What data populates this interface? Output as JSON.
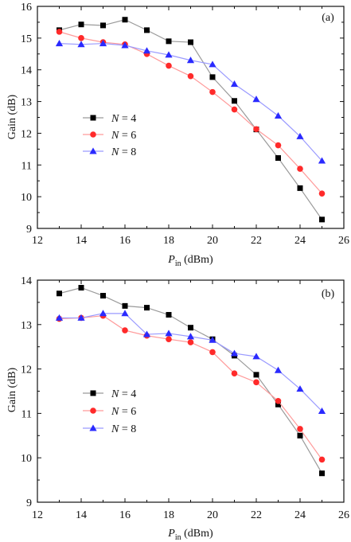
{
  "chart_data": [
    {
      "type": "line",
      "panel_label": "(a)",
      "xlabel_main": "P",
      "xlabel_sub": "in",
      "xlabel_unit": " (dBm)",
      "ylabel": "Gain (dB)",
      "xlim": [
        12,
        26
      ],
      "ylim": [
        9,
        16
      ],
      "xticks": [
        "12",
        "14",
        "16",
        "18",
        "20",
        "22",
        "24",
        "26"
      ],
      "yticks": [
        "9",
        "10",
        "11",
        "12",
        "13",
        "14",
        "15",
        "16"
      ],
      "legend_position": "middle-left",
      "x": [
        13,
        14,
        15,
        16,
        17,
        18,
        19,
        20,
        21,
        22,
        23,
        24,
        25
      ],
      "series": [
        {
          "label_italic": "N",
          "label_rest": " = 4",
          "marker": "square",
          "color": "#000000",
          "line_color": "#9a9a9a",
          "values": [
            15.25,
            15.43,
            15.4,
            15.58,
            15.25,
            14.9,
            14.87,
            13.77,
            13.02,
            12.12,
            11.22,
            10.27,
            9.28
          ]
        },
        {
          "label_italic": "N",
          "label_rest": " = 6",
          "marker": "circle",
          "color": "#ff2a2a",
          "line_color": "#ff9a9a",
          "values": [
            15.2,
            15.0,
            14.87,
            14.8,
            14.5,
            14.13,
            13.8,
            13.3,
            12.75,
            12.13,
            11.62,
            10.88,
            10.1
          ]
        },
        {
          "label_italic": "N",
          "label_rest": " = 8",
          "marker": "triangle",
          "color": "#2a2aff",
          "line_color": "#9a9aff",
          "values": [
            14.83,
            14.8,
            14.83,
            14.77,
            14.6,
            14.47,
            14.3,
            14.17,
            13.55,
            13.07,
            12.55,
            11.9,
            11.13
          ]
        }
      ]
    },
    {
      "type": "line",
      "panel_label": "(b)",
      "xlabel_main": "P",
      "xlabel_sub": "in",
      "xlabel_unit": " (dBm)",
      "ylabel": "Gain (dB)",
      "xlim": [
        12,
        26
      ],
      "ylim": [
        9,
        14
      ],
      "xticks": [
        "12",
        "14",
        "16",
        "18",
        "20",
        "22",
        "24",
        "26"
      ],
      "yticks": [
        "9",
        "10",
        "11",
        "12",
        "13",
        "14"
      ],
      "legend_position": "lower-left",
      "x": [
        13,
        14,
        15,
        16,
        17,
        18,
        19,
        20,
        21,
        22,
        23,
        24,
        25
      ],
      "series": [
        {
          "label_italic": "N",
          "label_rest": " = 4",
          "marker": "square",
          "color": "#000000",
          "line_color": "#9a9a9a",
          "values": [
            13.7,
            13.83,
            13.65,
            13.42,
            13.38,
            13.22,
            12.93,
            12.67,
            12.3,
            11.87,
            11.2,
            10.5,
            9.65
          ]
        },
        {
          "label_italic": "N",
          "label_rest": " = 6",
          "marker": "circle",
          "color": "#ff2a2a",
          "line_color": "#ff9a9a",
          "values": [
            13.13,
            13.15,
            13.2,
            12.87,
            12.75,
            12.67,
            12.6,
            12.38,
            11.9,
            11.7,
            11.28,
            10.65,
            9.96
          ]
        },
        {
          "label_italic": "N",
          "label_rest": " = 8",
          "marker": "triangle",
          "color": "#2a2aff",
          "line_color": "#9a9aff",
          "values": [
            13.15,
            13.15,
            13.25,
            13.25,
            12.78,
            12.8,
            12.73,
            12.65,
            12.35,
            12.28,
            11.97,
            11.55,
            11.05
          ]
        }
      ]
    }
  ]
}
